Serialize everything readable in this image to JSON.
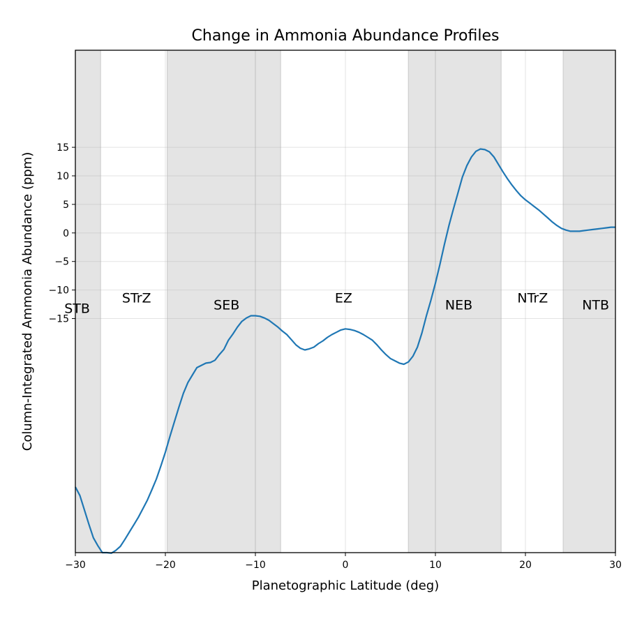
{
  "chart_data": {
    "type": "line",
    "title": "Change in Ammonia Abundance Profiles",
    "xlabel": "Planetographic Latitude (deg)",
    "ylabel": "Column-Integrated Ammonia Abundance (ppm)",
    "xlim": [
      -30,
      30
    ],
    "ylim": [
      -56,
      32
    ],
    "xticks": [
      -30,
      -20,
      -10,
      0,
      10,
      20,
      30
    ],
    "xtick_labels": [
      "−30",
      "−20",
      "−10",
      "0",
      "10",
      "20",
      "30"
    ],
    "yticks": [
      15,
      10,
      5,
      0,
      -5,
      -10,
      -15
    ],
    "ytick_labels": [
      "15",
      "10",
      "5",
      "0",
      "−5",
      "−10",
      "−15"
    ],
    "grid": true,
    "color": "#1f77b4",
    "shaded_bands": [
      {
        "x0": -30,
        "x1": -27.2
      },
      {
        "x0": -19.8,
        "x1": -7.2
      },
      {
        "x0": 7.0,
        "x1": 17.3
      },
      {
        "x0": 24.2,
        "x1": 30
      }
    ],
    "band_lines": [
      -27.2,
      -19.8,
      -10,
      -7.2,
      7.0,
      10,
      17.3,
      24.2
    ],
    "band_labels": [
      {
        "text": "STB",
        "x": -29.8,
        "y": -14.0
      },
      {
        "text": "STrZ",
        "x": -23.2,
        "y": -12.2
      },
      {
        "text": "SEB",
        "x": -13.2,
        "y": -13.4
      },
      {
        "text": "EZ",
        "x": -0.2,
        "y": -12.2
      },
      {
        "text": "NEB",
        "x": 12.6,
        "y": -13.4
      },
      {
        "text": "NTrZ",
        "x": 20.8,
        "y": -12.2
      },
      {
        "text": "NTB",
        "x": 27.8,
        "y": -13.4
      }
    ],
    "series": [
      {
        "x": [
          -30,
          -29.5,
          -29,
          -28.5,
          -28,
          -27.5,
          -27,
          -26.5,
          -26,
          -25.5,
          -25,
          -24.5,
          -24,
          -23.5,
          -23,
          -22.5,
          -22,
          -21.5,
          -21,
          -20.5,
          -20,
          -19.5,
          -19,
          -18.5,
          -18,
          -17.5,
          -17,
          -16.5,
          -16,
          -15.5,
          -15,
          -14.5,
          -14,
          -13.5,
          -13,
          -12.5,
          -12,
          -11.5,
          -11,
          -10.5,
          -10,
          -9.5,
          -9,
          -8.5,
          -8,
          -7.5,
          -7,
          -6.5,
          -6,
          -5.5,
          -5,
          -4.5,
          -4,
          -3.5,
          -3,
          -2.5,
          -2,
          -1.5,
          -1,
          -0.5,
          0,
          0.5,
          1,
          1.5,
          2,
          2.5,
          3,
          3.5,
          4,
          4.5,
          5,
          5.5,
          6,
          6.5,
          7,
          7.5,
          8,
          8.5,
          9,
          9.5,
          10,
          10.5,
          11,
          11.5,
          12,
          12.5,
          13,
          13.5,
          14,
          14.5,
          15,
          15.5,
          16,
          16.5,
          17,
          17.5,
          18,
          18.5,
          19,
          19.5,
          20,
          20.5,
          21,
          21.5,
          22,
          22.5,
          23,
          23.5,
          24,
          24.5,
          25,
          25.5,
          26,
          26.5,
          27,
          27.5,
          28,
          28.5,
          29,
          29.5,
          30
        ],
        "y": [
          -44.5,
          -46,
          -48.5,
          -51,
          -53.4,
          -54.8,
          -56.0,
          -56.0,
          -56.1,
          -55.6,
          -54.9,
          -53.7,
          -52.4,
          -51.1,
          -49.8,
          -48.3,
          -46.8,
          -45.0,
          -43.1,
          -40.8,
          -38.4,
          -35.7,
          -33.1,
          -30.5,
          -28.1,
          -26.2,
          -24.9,
          -23.6,
          -23.2,
          -22.8,
          -22.7,
          -22.3,
          -21.3,
          -20.4,
          -18.8,
          -17.7,
          -16.5,
          -15.5,
          -14.9,
          -14.5,
          -14.5,
          -14.6,
          -14.9,
          -15.3,
          -15.9,
          -16.5,
          -17.2,
          -17.8,
          -18.7,
          -19.6,
          -20.2,
          -20.5,
          -20.3,
          -20.0,
          -19.4,
          -18.9,
          -18.3,
          -17.8,
          -17.4,
          -17.0,
          -16.8,
          -16.9,
          -17.1,
          -17.4,
          -17.8,
          -18.3,
          -18.8,
          -19.6,
          -20.5,
          -21.3,
          -22.0,
          -22.4,
          -22.8,
          -23.0,
          -22.6,
          -21.6,
          -20.0,
          -17.5,
          -14.5,
          -11.8,
          -8.8,
          -5.5,
          -2.0,
          1.3,
          4.2,
          7.0,
          9.8,
          11.8,
          13.3,
          14.3,
          14.7,
          14.6,
          14.2,
          13.3,
          12.0,
          10.7,
          9.5,
          8.4,
          7.4,
          6.5,
          5.8,
          5.2,
          4.6,
          4.0,
          3.3,
          2.6,
          1.9,
          1.3,
          0.8,
          0.5,
          0.3,
          0.3,
          0.3,
          0.4,
          0.5,
          0.6,
          0.7,
          0.8,
          0.9,
          1.0,
          1.0
        ]
      }
    ]
  }
}
